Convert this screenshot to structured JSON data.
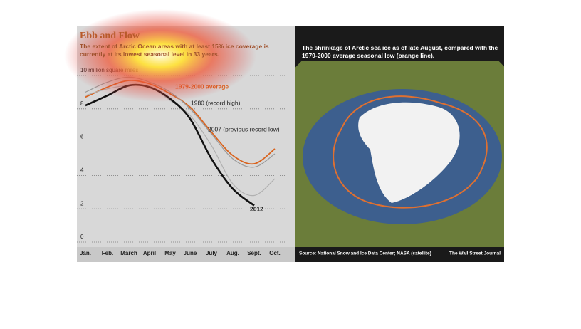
{
  "chart_data": {
    "type": "line",
    "title": "Ebb and Flow",
    "subtitle": "The extent of Arctic Ocean areas with at least 15% ice coverage is currently at its lowest seasonal level in 33 years.",
    "categories": [
      "Jan.",
      "Feb.",
      "March",
      "April",
      "May",
      "June",
      "July",
      "Aug.",
      "Sept.",
      "Oct."
    ],
    "series": [
      {
        "name": "1979-2000 average",
        "color": "#d9631e",
        "values": [
          8.7,
          9.3,
          9.7,
          9.5,
          8.9,
          8.1,
          6.6,
          5.2,
          4.7,
          5.6
        ]
      },
      {
        "name": "1980 (record high)",
        "color": "#9a9a9a",
        "values": [
          9.0,
          9.6,
          9.9,
          9.6,
          9.0,
          8.0,
          6.5,
          5.0,
          4.5,
          5.3
        ]
      },
      {
        "name": "2007 (previous record low)",
        "color": "#b0b0b0",
        "values": [
          8.8,
          9.2,
          9.4,
          9.3,
          8.5,
          7.6,
          5.8,
          3.5,
          2.8,
          3.8
        ]
      },
      {
        "name": "2012",
        "color": "#111111",
        "values": [
          8.2,
          8.8,
          9.4,
          9.3,
          8.6,
          7.4,
          5.0,
          3.2,
          2.2,
          null
        ]
      }
    ],
    "ylim": [
      0,
      10
    ],
    "yticks": [
      0,
      2,
      4,
      6,
      8,
      {
        "value": 10,
        "label": "10 million square miles"
      }
    ],
    "grid": true
  },
  "map": {
    "caption": "The shrinkage of Arctic sea ice as of late August, compared with the 1979-2000 average seasonal low (orange line).",
    "source": "Source: National Snow and Ice Data Center; NASA (satellite)",
    "credit": "The Wall Street Journal"
  }
}
